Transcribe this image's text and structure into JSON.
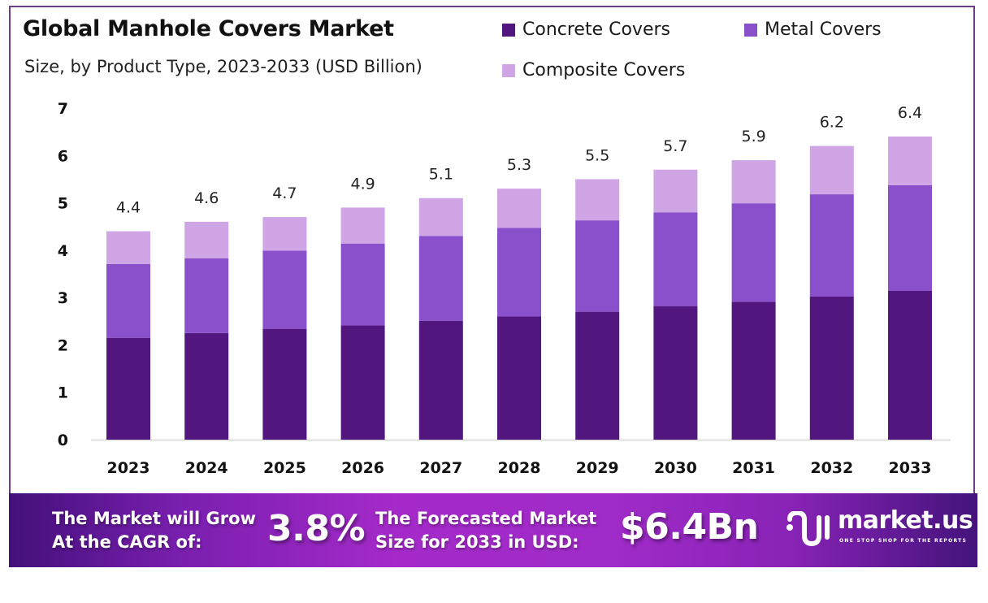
{
  "header": {
    "title": "Global Manhole Covers Market",
    "subtitle": "Size, by Product Type, 2023-2033 (USD Billion)"
  },
  "legend": [
    {
      "label": "Concrete Covers",
      "color": "#52167f"
    },
    {
      "label": "Metal Covers",
      "color": "#8a4fcb"
    },
    {
      "label": "Composite Covers",
      "color": "#cfa5e6"
    }
  ],
  "chart_data": {
    "type": "bar",
    "stacked": true,
    "title": "Global Manhole Covers Market",
    "subtitle": "Size, by Product Type, 2023-2033 (USD Billion)",
    "xlabel": "",
    "ylabel": "",
    "ylim": [
      0,
      7
    ],
    "yticks": [
      "0",
      "1",
      "2",
      "3",
      "4",
      "5",
      "6",
      "7"
    ],
    "grid": false,
    "legend_position": "top-right",
    "categories": [
      "2023",
      "2024",
      "2025",
      "2026",
      "2027",
      "2028",
      "2029",
      "2030",
      "2031",
      "2032",
      "2033"
    ],
    "series": [
      {
        "name": "Concrete Covers",
        "color": "#52167f",
        "values": [
          2.15,
          2.25,
          2.34,
          2.41,
          2.51,
          2.6,
          2.7,
          2.82,
          2.91,
          3.02,
          3.14
        ]
      },
      {
        "name": "Metal Covers",
        "color": "#8a4fcb",
        "values": [
          1.56,
          1.58,
          1.65,
          1.73,
          1.79,
          1.87,
          1.93,
          1.98,
          2.08,
          2.16,
          2.23
        ]
      },
      {
        "name": "Composite Covers",
        "color": "#cfa5e6",
        "values": [
          0.69,
          0.77,
          0.71,
          0.76,
          0.8,
          0.83,
          0.87,
          0.9,
          0.91,
          1.02,
          1.03
        ]
      }
    ],
    "totals": [
      4.4,
      4.6,
      4.7,
      4.9,
      5.1,
      5.3,
      5.5,
      5.7,
      5.9,
      6.2,
      6.4
    ],
    "total_labels": [
      "4.4",
      "4.6",
      "4.7",
      "4.9",
      "5.1",
      "5.3",
      "5.5",
      "5.7",
      "5.9",
      "6.2",
      "6.4"
    ]
  },
  "banner": {
    "cagr_text_line1": "The Market will Grow",
    "cagr_text_line2": "At the CAGR of:",
    "cagr_value": "3.8%",
    "forecast_text_line1": "The Forecasted Market",
    "forecast_text_line2": "Size for 2033 in USD:",
    "forecast_value": "$6.4Bn",
    "logo_name": "market.us",
    "logo_tagline": "ONE STOP SHOP FOR THE REPORTS",
    "logo_icon": "market-us-logo-icon"
  }
}
